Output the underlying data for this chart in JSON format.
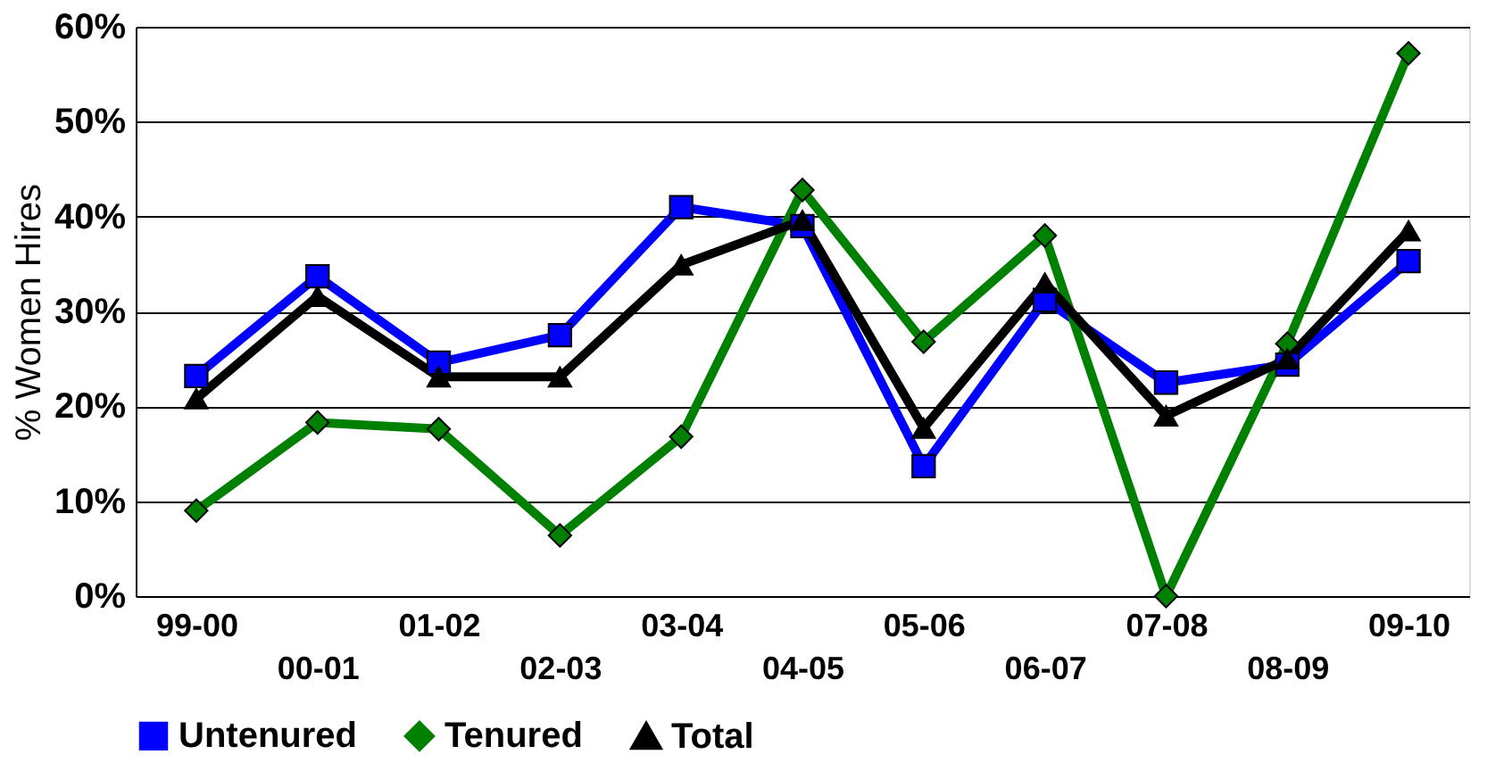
{
  "chart_data": {
    "type": "line",
    "ylabel": "% Women Hires",
    "categories": [
      "99-00",
      "00-01",
      "01-02",
      "02-03",
      "03-04",
      "04-05",
      "05-06",
      "06-07",
      "07-08",
      "08-09",
      "09-10"
    ],
    "series": [
      {
        "name": "Untenured",
        "color": "#0000ff",
        "marker": "square",
        "values": [
          23.2,
          33.7,
          24.6,
          27.5,
          41.0,
          39.0,
          13.7,
          31.2,
          22.5,
          24.4,
          35.3
        ]
      },
      {
        "name": "Tenured",
        "color": "#008000",
        "marker": "diamond",
        "values": [
          9.0,
          18.3,
          17.6,
          6.4,
          16.8,
          42.8,
          26.8,
          38.0,
          0.0,
          26.6,
          57.2
        ]
      },
      {
        "name": "Total",
        "color": "#000000",
        "marker": "triangle",
        "values": [
          20.8,
          31.6,
          23.1,
          23.1,
          34.9,
          39.6,
          17.7,
          33.0,
          19.0,
          25.0,
          38.5
        ]
      }
    ],
    "ylim": [
      0,
      60
    ],
    "yticks": [
      {
        "value": 0,
        "label": "0%"
      },
      {
        "value": 10,
        "label": "10%"
      },
      {
        "value": 20,
        "label": "20%"
      },
      {
        "value": 30,
        "label": "30%"
      },
      {
        "value": 40,
        "label": "40%"
      },
      {
        "value": 50,
        "label": "50%"
      },
      {
        "value": 60,
        "label": "60%"
      }
    ],
    "grid": "y",
    "legend": "bottom",
    "line_style": "solid"
  }
}
